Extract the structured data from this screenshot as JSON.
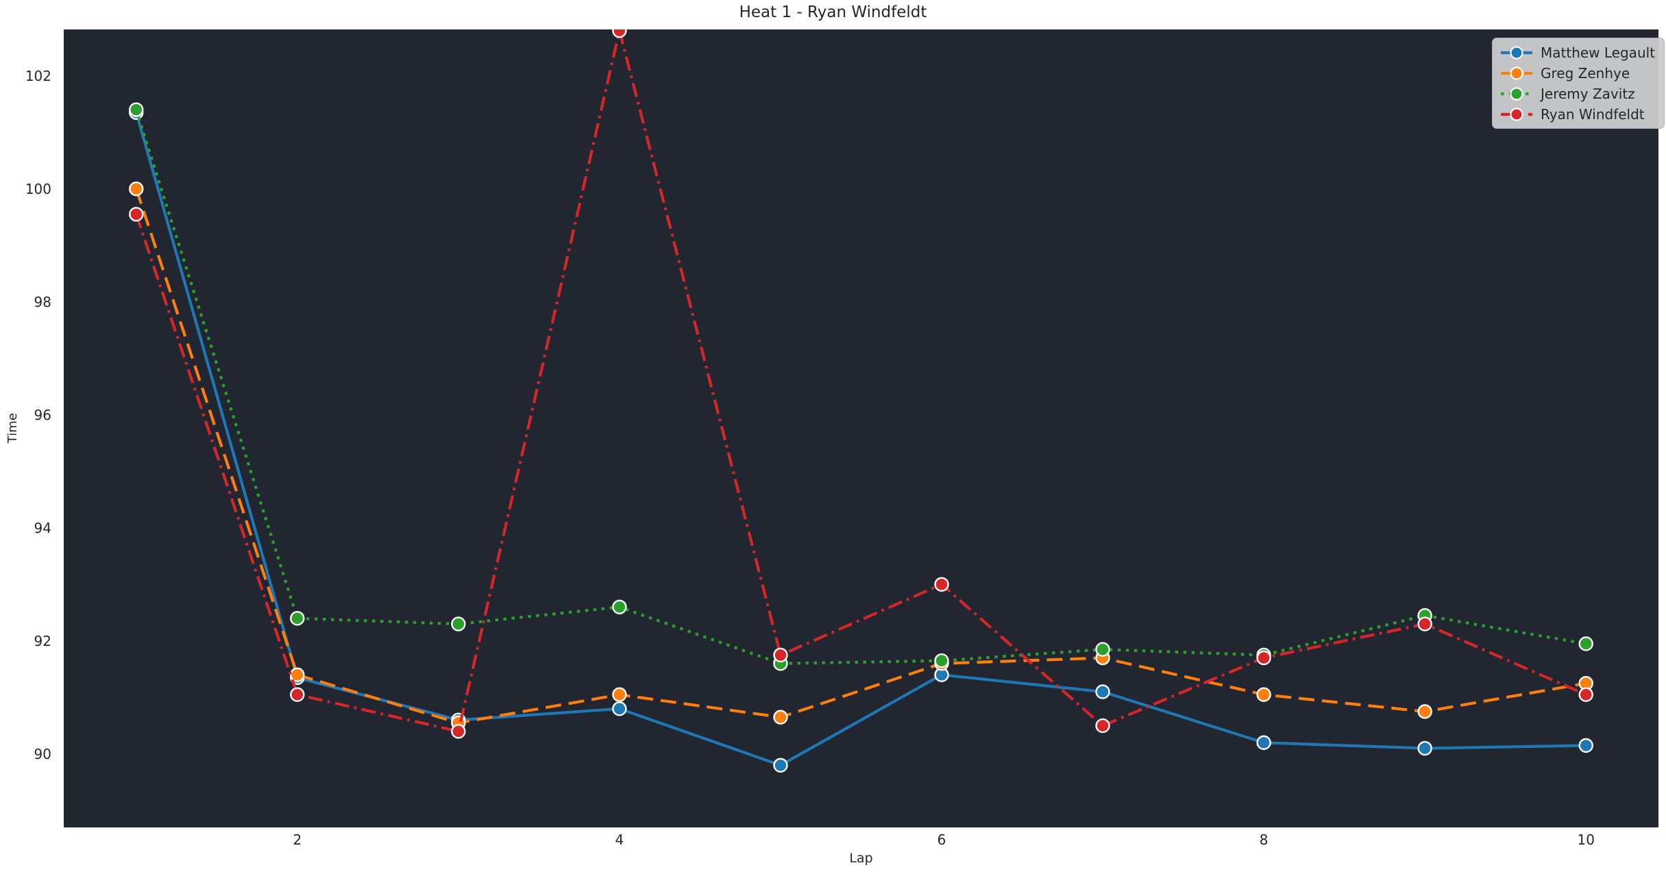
{
  "figure": {
    "background": "#ffffff",
    "plot_background": "#212631",
    "text_color": "#262626",
    "legend_bg": "#ccccce"
  },
  "chart_data": {
    "type": "line",
    "title": "Heat 1 - Ryan Windfeldt",
    "xlabel": "Lap",
    "ylabel": "Time",
    "x": [
      1,
      2,
      3,
      4,
      5,
      6,
      7,
      8,
      9,
      10
    ],
    "xticks": [
      2,
      4,
      6,
      8,
      10
    ],
    "yticks": [
      90,
      92,
      94,
      96,
      98,
      100,
      102
    ],
    "xlim": [
      0.55,
      10.45
    ],
    "ylim": [
      88.7,
      102.82
    ],
    "grid": false,
    "legend_position": "upper right",
    "marker": "circle",
    "series": [
      {
        "name": "Matthew Legault",
        "color": "#1f77b4",
        "line_style": "solid",
        "values": [
          101.35,
          91.35,
          90.6,
          90.8,
          89.8,
          91.4,
          91.1,
          90.2,
          90.1,
          90.15
        ]
      },
      {
        "name": "Greg Zenhye",
        "color": "#ff7f0e",
        "line_style": "dashed",
        "values": [
          100.0,
          91.4,
          90.55,
          91.05,
          90.65,
          91.6,
          91.7,
          91.05,
          90.75,
          91.25
        ]
      },
      {
        "name": "Jeremy Zavitz",
        "color": "#2ca02c",
        "line_style": "dotted",
        "values": [
          101.4,
          92.4,
          92.3,
          92.6,
          91.6,
          91.65,
          91.85,
          91.75,
          92.45,
          91.95
        ]
      },
      {
        "name": "Ryan Windfeldt",
        "color": "#d62728",
        "line_style": "dashdot",
        "values": [
          99.55,
          91.05,
          90.4,
          102.8,
          91.75,
          93.0,
          90.5,
          91.7,
          92.3,
          91.05
        ]
      }
    ]
  }
}
